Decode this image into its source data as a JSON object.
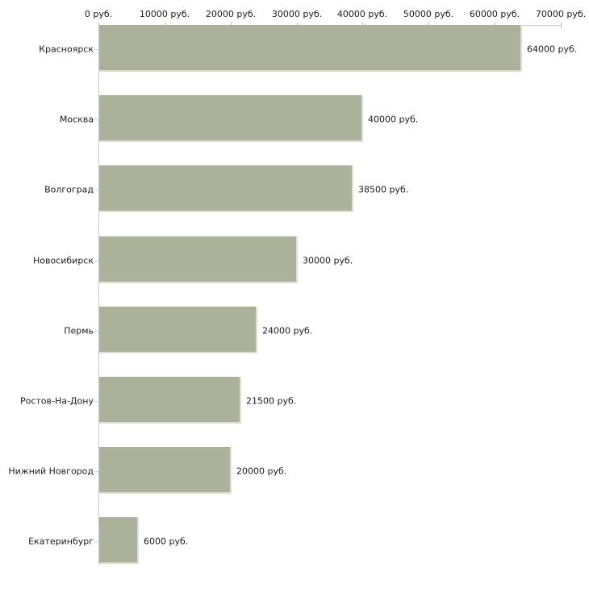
{
  "chart_data": {
    "type": "bar",
    "orientation": "horizontal",
    "title": "",
    "xlabel": "",
    "ylabel": "",
    "xlim": [
      0,
      70000
    ],
    "grid": false,
    "legend": false,
    "unit_suffix": " руб.",
    "categories": [
      "Красноярск",
      "Москва",
      "Волгоград",
      "Новосибирск",
      "Пермь",
      "Ростов-На-Дону",
      "Нижний Новгород",
      "Екатеринбург"
    ],
    "values": [
      64000,
      40000,
      38500,
      30000,
      24000,
      21500,
      20000,
      6000
    ],
    "value_labels": [
      "64000 руб.",
      "40000 руб.",
      "38500 руб.",
      "30000 руб.",
      "24000 руб.",
      "21500 руб.",
      "20000 руб.",
      "6000 руб."
    ],
    "x_ticks": [
      0,
      10000,
      20000,
      30000,
      40000,
      50000,
      60000,
      70000
    ],
    "x_tick_labels": [
      "0 руб.",
      "10000 руб.",
      "20000 руб.",
      "30000 руб.",
      "40000 руб.",
      "50000 руб.",
      "60000 руб.",
      "70000 руб."
    ],
    "colors": {
      "bar_fill": "#abb19a",
      "bar_edge": "#dde0d3",
      "axis_line": "#c9c9c9",
      "tick_mark": "#c5bc8a",
      "text": "#1c1c1c",
      "background": "#ffffff"
    }
  }
}
